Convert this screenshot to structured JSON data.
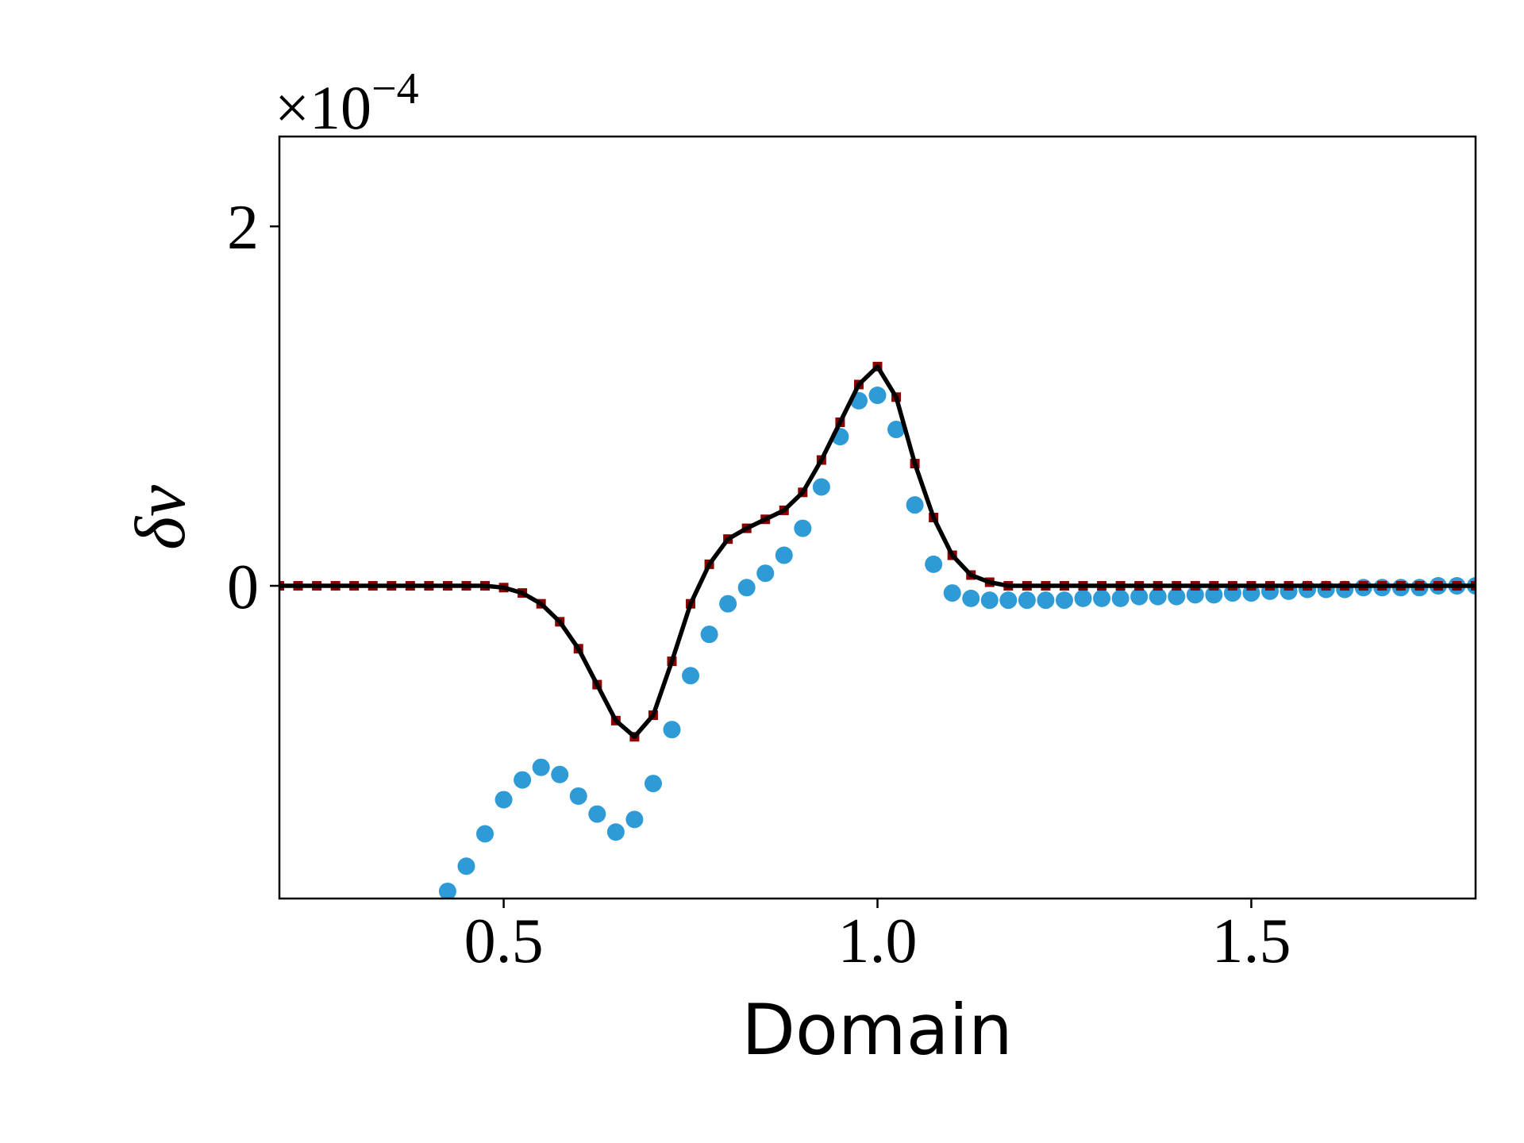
{
  "chart_data": {
    "type": "line",
    "x_label": "Domain",
    "y_label": "δv",
    "y_offset_label": {
      "base": "×10",
      "exponent": "−4"
    },
    "xlim": [
      0.2,
      1.8
    ],
    "ylim": [
      -1.74,
      2.5
    ],
    "xticks": [
      0.5,
      {
        "value": 1,
        "label": "1.0"
      },
      1.5
    ],
    "yticks": [
      0,
      2
    ],
    "grid": false,
    "x": [
      0.2,
      0.225,
      0.25,
      0.275,
      0.3,
      0.325,
      0.35,
      0.375,
      0.4,
      0.425,
      0.45,
      0.475,
      0.5,
      0.525,
      0.55,
      0.575,
      0.6,
      0.625,
      0.65,
      0.675,
      0.7,
      0.725,
      0.75,
      0.775,
      0.8,
      0.825,
      0.85,
      0.875,
      0.9,
      0.925,
      0.95,
      0.975,
      1.0,
      1.025,
      1.05,
      1.075,
      1.1,
      1.125,
      1.15,
      1.175,
      1.2,
      1.225,
      1.25,
      1.275,
      1.3,
      1.325,
      1.35,
      1.375,
      1.4,
      1.425,
      1.45,
      1.475,
      1.5,
      1.525,
      1.55,
      1.575,
      1.6,
      1.625,
      1.65,
      1.675,
      1.7,
      1.725,
      1.75,
      1.775,
      1.8
    ],
    "series": [
      {
        "style": "marker",
        "marker": "circle",
        "color": "#2e9bd6",
        "values": [
          null,
          null,
          null,
          null,
          null,
          null,
          null,
          null,
          null,
          -1.7,
          -1.56,
          -1.38,
          -1.19,
          -1.08,
          -1.01,
          -1.05,
          -1.17,
          -1.27,
          -1.37,
          -1.3,
          -1.1,
          -0.8,
          -0.5,
          -0.27,
          -0.1,
          -0.01,
          0.07,
          0.17,
          0.32,
          0.55,
          0.83,
          1.03,
          1.06,
          0.87,
          0.45,
          0.12,
          -0.04,
          -0.07,
          -0.08,
          -0.08,
          -0.08,
          -0.08,
          -0.08,
          -0.07,
          -0.07,
          -0.07,
          -0.06,
          -0.06,
          -0.06,
          -0.05,
          -0.05,
          -0.04,
          -0.04,
          -0.03,
          -0.03,
          -0.02,
          -0.02,
          -0.02,
          -0.01,
          -0.01,
          -0.01,
          -0.01,
          0,
          0,
          0
        ]
      },
      {
        "style": "marker",
        "marker": "square",
        "color": "#8b0000",
        "values": [
          0,
          0,
          0,
          0,
          0,
          0,
          0,
          0,
          0,
          0,
          0,
          0,
          -0.01,
          -0.04,
          -0.1,
          -0.2,
          -0.35,
          -0.55,
          -0.75,
          -0.84,
          -0.72,
          -0.42,
          -0.1,
          0.12,
          0.26,
          0.32,
          0.37,
          0.42,
          0.52,
          0.7,
          0.91,
          1.12,
          1.22,
          1.05,
          0.68,
          0.38,
          0.17,
          0.06,
          0.02,
          0,
          0,
          0,
          0,
          0,
          0,
          0,
          0,
          0,
          0,
          0,
          0,
          0,
          0,
          0,
          0,
          0,
          0,
          0,
          0,
          0,
          0,
          0,
          0,
          0,
          0
        ]
      },
      {
        "style": "line",
        "color": "#000000",
        "values": [
          0,
          0,
          0,
          0,
          0,
          0,
          0,
          0,
          0,
          0,
          0,
          0,
          -0.01,
          -0.04,
          -0.1,
          -0.2,
          -0.35,
          -0.55,
          -0.75,
          -0.84,
          -0.72,
          -0.42,
          -0.1,
          0.12,
          0.26,
          0.32,
          0.37,
          0.42,
          0.52,
          0.7,
          0.91,
          1.12,
          1.22,
          1.05,
          0.68,
          0.38,
          0.17,
          0.06,
          0.02,
          0,
          0,
          0,
          0,
          0,
          0,
          0,
          0,
          0,
          0,
          0,
          0,
          0,
          0,
          0,
          0,
          0,
          0,
          0,
          0,
          0,
          0,
          0,
          0,
          0,
          0
        ]
      }
    ]
  }
}
